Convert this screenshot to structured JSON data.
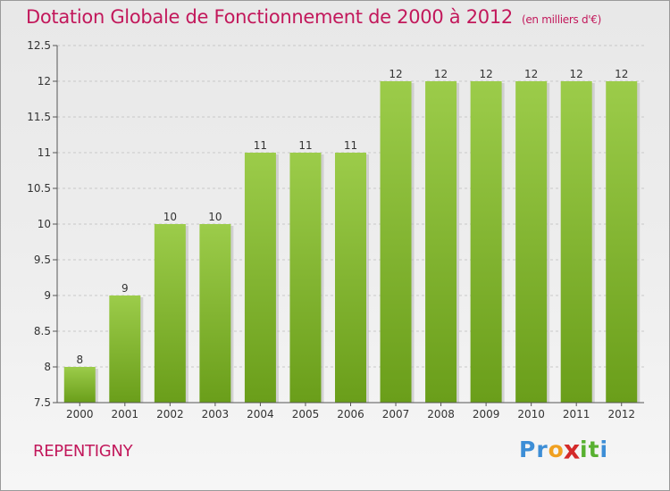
{
  "header": {
    "title": "Dotation Globale de Fonctionnement de 2000 à 2012",
    "unit": "(en milliers d'€)"
  },
  "footer": {
    "city": "REPENTIGNY",
    "logo_letters": [
      "P",
      "r",
      "o",
      "x",
      "i",
      "t",
      "i"
    ],
    "logo_colors": [
      "#3d8ed6",
      "#3d8ed6",
      "#f0a020",
      "#d42a2a",
      "#58b030",
      "#58b030",
      "#3d8ed6"
    ]
  },
  "chart_data": {
    "type": "bar",
    "title": "Dotation Globale de Fonctionnement de 2000 à 2012",
    "xlabel": "",
    "ylabel": "",
    "categories": [
      "2000",
      "2001",
      "2002",
      "2003",
      "2004",
      "2005",
      "2006",
      "2007",
      "2008",
      "2009",
      "2010",
      "2011",
      "2012"
    ],
    "values": [
      8,
      9,
      10,
      10,
      11,
      11,
      11,
      12,
      12,
      12,
      12,
      12,
      12
    ],
    "ylim": [
      7.5,
      12.5
    ],
    "yticks": [
      7.5,
      8,
      8.5,
      9,
      9.5,
      10,
      10.5,
      11,
      11.5,
      12,
      12.5
    ],
    "ytick_labels": [
      "7.5",
      "8",
      "8.5",
      "9",
      "9.5",
      "10",
      "10.5",
      "11",
      "11.5",
      "12",
      "12.5"
    ],
    "grid": true,
    "colors": {
      "bar_top": "#9ccc4a",
      "bar_bottom": "#6a9e1a",
      "grid": "#c8c8c8",
      "text": "#333333"
    }
  }
}
